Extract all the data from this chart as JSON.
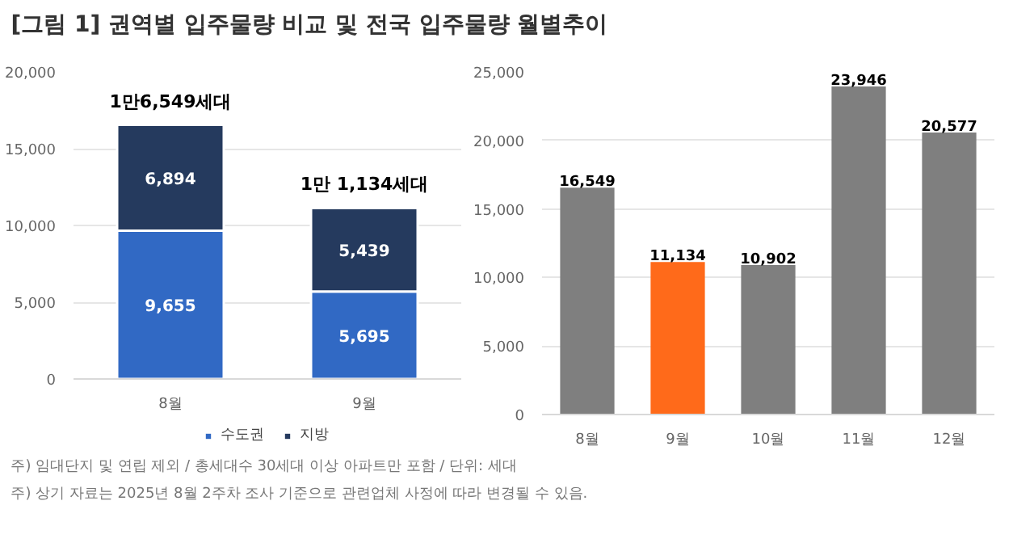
{
  "chart_data": [
    {
      "type": "bar",
      "title": "[그림 1] 권역별 입주물량 비교 및 전국 입주물량 월별추이",
      "categories": [
        "8월",
        "9월"
      ],
      "stacked": true,
      "series": [
        {
          "name": "수도권",
          "color": "#3169c4",
          "values": [
            9655,
            5695
          ],
          "value_labels": [
            "9,655",
            "5,695"
          ]
        },
        {
          "name": "지방",
          "color": "#253a5e",
          "values": [
            6894,
            5439
          ],
          "value_labels": [
            "6,894",
            "5,439"
          ]
        }
      ],
      "totals": [
        "1만6,549세대",
        "1만 1,134세대"
      ],
      "ylim": [
        0,
        20000
      ],
      "yticks": [
        {
          "value": 0,
          "label": "0"
        },
        {
          "value": 5000,
          "label": "5,000"
        },
        {
          "value": 10000,
          "label": "10,000"
        },
        {
          "value": 15000,
          "label": "15,000"
        },
        {
          "value": 20000,
          "label": "20,000"
        }
      ],
      "grid": "y",
      "legend": "bottom",
      "annotations": [
        "주) 임대단지 및 연립 제외 / 총세대수 30세대 이상 아파트만 포함 / 단위: 세대",
        "주) 상기 자료는 2025년 8월 2주차 조사 기준으로 관련업체 사정에 따라 변경될 수 있음."
      ]
    },
    {
      "type": "bar",
      "categories": [
        "8월",
        "9월",
        "10월",
        "11월",
        "12월"
      ],
      "values": [
        16549,
        11134,
        10902,
        23946,
        20577
      ],
      "value_labels": [
        "16,549",
        "11,134",
        "10,902",
        "23,946",
        "20,577"
      ],
      "colors": [
        "#7f7f7f",
        "#ff6a1a",
        "#7f7f7f",
        "#7f7f7f",
        "#7f7f7f"
      ],
      "ylim": [
        0,
        25000
      ],
      "yticks": [
        {
          "value": 0,
          "label": "0"
        },
        {
          "value": 5000,
          "label": "5,000"
        },
        {
          "value": 10000,
          "label": "10,000"
        },
        {
          "value": 15000,
          "label": "15,000"
        },
        {
          "value": 20000,
          "label": "20,000"
        },
        {
          "value": 25000,
          "label": "25,000"
        }
      ],
      "grid": "y"
    }
  ]
}
